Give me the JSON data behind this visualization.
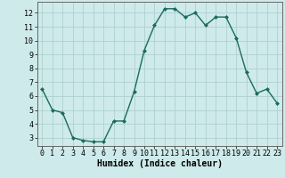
{
  "x": [
    0,
    1,
    2,
    3,
    4,
    5,
    6,
    7,
    8,
    9,
    10,
    11,
    12,
    13,
    14,
    15,
    16,
    17,
    18,
    19,
    20,
    21,
    22,
    23
  ],
  "y": [
    6.5,
    5.0,
    4.8,
    3.0,
    2.8,
    2.7,
    2.7,
    4.2,
    4.2,
    6.3,
    9.3,
    11.1,
    12.3,
    12.3,
    11.7,
    12.0,
    11.1,
    11.7,
    11.7,
    10.2,
    7.7,
    6.2,
    6.5,
    5.5
  ],
  "line_color": "#1a6b5e",
  "marker": "D",
  "marker_size": 2.0,
  "bg_color": "#ceeaea",
  "grid_color": "#b0d0d0",
  "xlabel": "Humidex (Indice chaleur)",
  "xlabel_fontsize": 7,
  "ylabel_ticks": [
    3,
    4,
    5,
    6,
    7,
    8,
    9,
    10,
    11,
    12
  ],
  "xlim": [
    -0.5,
    23.5
  ],
  "ylim": [
    2.4,
    12.8
  ],
  "xticks": [
    0,
    1,
    2,
    3,
    4,
    5,
    6,
    7,
    8,
    9,
    10,
    11,
    12,
    13,
    14,
    15,
    16,
    17,
    18,
    19,
    20,
    21,
    22,
    23
  ],
  "tick_fontsize": 6,
  "line_width": 1.0
}
